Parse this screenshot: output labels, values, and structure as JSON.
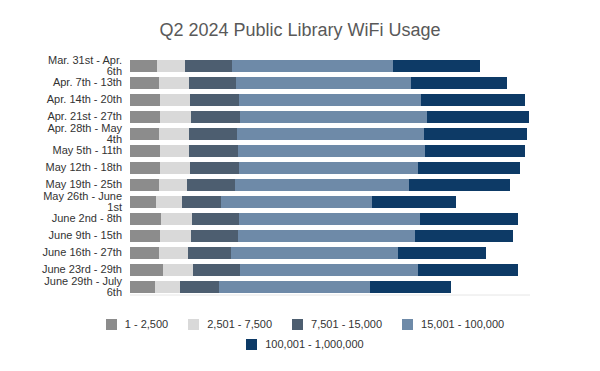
{
  "chart_data": {
    "type": "bar",
    "title": "Q2 2024 Public Library WiFi Usage",
    "orientation": "horizontal",
    "stacked": true,
    "grid": false,
    "legend": "bottom",
    "tick_labels": "y",
    "categories": [
      "Mar. 31st - Apr. 6th",
      "Apr. 7th - 13th",
      "Apr. 14th - 20th",
      "Apr. 21st - 27th",
      "Apr. 28th - May 4th",
      "May 5th - 11th",
      "May 12th - 18th",
      "May 19th - 25th",
      "May 26th - June 1st",
      "June 2nd - 8th",
      "June 9th - 15th",
      "June 16th - 27th",
      "June 23rd - 29th",
      "June 29th - July 6th"
    ],
    "xlim": [
      0,
      400
    ],
    "xticks": [],
    "series": [
      {
        "name": "1 - 2,500",
        "color": "#8c8c8c",
        "values": [
          27,
          29,
          30,
          30,
          29,
          30,
          30,
          29,
          26,
          31,
          30,
          29,
          33,
          25
        ]
      },
      {
        "name": "2,501 - 7,500",
        "color": "#d9d9d9",
        "values": [
          28,
          30,
          30,
          31,
          30,
          29,
          30,
          28,
          26,
          31,
          31,
          29,
          30,
          25
        ]
      },
      {
        "name": "7,501 - 15,000",
        "color": "#4d5e70",
        "values": [
          47,
          47,
          49,
          49,
          48,
          49,
          49,
          48,
          39,
          47,
          47,
          43,
          47,
          39
        ]
      },
      {
        "name": "15,001 - 100,000",
        "color": "#6e8aa8",
        "values": [
          161,
          175,
          182,
          187,
          187,
          187,
          179,
          174,
          151,
          181,
          177,
          167,
          178,
          151
        ]
      },
      {
        "name": "100,001 - 1,000,000",
        "color": "#0d3a66",
        "values": [
          87,
          96,
          104,
          102,
          103,
          100,
          102,
          101,
          84,
          98,
          98,
          88,
          100,
          81
        ]
      }
    ]
  }
}
